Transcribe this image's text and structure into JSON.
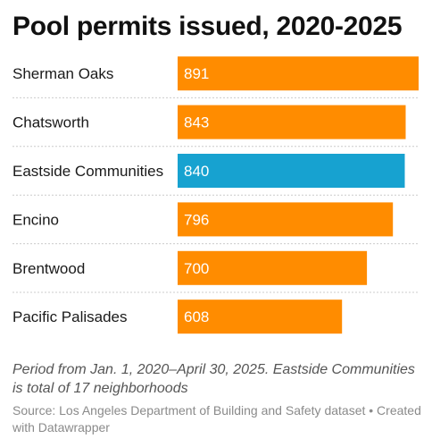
{
  "chart_data": {
    "type": "bar",
    "orientation": "horizontal",
    "title": "Pool permits issued, 2020-2025",
    "categories": [
      "Sherman Oaks",
      "Chatsworth",
      "Eastside Communities",
      "Encino",
      "Brentwood",
      "Pacific Palisades"
    ],
    "values": [
      891,
      843,
      840,
      796,
      700,
      608
    ],
    "data_labels": [
      "891",
      "843",
      "840",
      "796",
      "700",
      "608"
    ],
    "highlight_category": "Eastside Communities",
    "xlim": [
      0,
      891
    ],
    "grid": false,
    "legend": "none",
    "colors": {
      "bar": "#ff8c00",
      "highlight": "#17a2d0",
      "label_text": "#ffffff",
      "separator": "#cccccc"
    }
  },
  "notes": "Period from Jan. 1, 2020–April 30, 2025. Eastside Communities is total of 17 neighborhoods",
  "footer": "Source: Los Angeles Department of Building and Safety dataset • Created with Datawrapper"
}
